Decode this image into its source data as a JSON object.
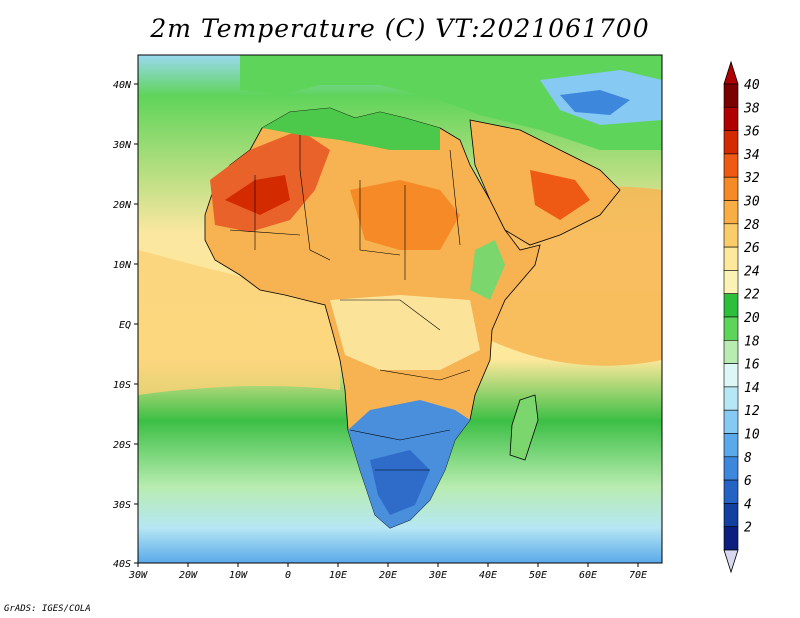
{
  "title": "2m Temperature (C) VT:2021061700",
  "credit": "GrADS: IGES/COLA",
  "map": {
    "lat_labels": [
      "40N",
      "30N",
      "20N",
      "10N",
      "EQ",
      "10S",
      "20S",
      "30S",
      "40S"
    ],
    "lon_labels": [
      "30W",
      "20W",
      "10W",
      "0",
      "10E",
      "20E",
      "30E",
      "40E",
      "50E",
      "60E",
      "70E"
    ]
  },
  "colorbar": {
    "labels": [
      "40",
      "38",
      "36",
      "34",
      "32",
      "30",
      "28",
      "26",
      "24",
      "22",
      "20",
      "18",
      "16",
      "14",
      "12",
      "10",
      "8",
      "6",
      "4",
      "2"
    ],
    "colors": [
      "#7a0000",
      "#b00000",
      "#d42a00",
      "#ee5a14",
      "#f58a26",
      "#f9ad45",
      "#fbcd6a",
      "#fde89b",
      "#fbf3b5",
      "#2dbf3c",
      "#5fd45a",
      "#b8ecb0",
      "#dcf7f5",
      "#b6e7f4",
      "#86c9f2",
      "#5aa9ea",
      "#3d87dc",
      "#2463c4",
      "#1140a0",
      "#0c1f7e"
    ],
    "top_color": "#b00000",
    "bottom_color": "#d8d8f0"
  }
}
